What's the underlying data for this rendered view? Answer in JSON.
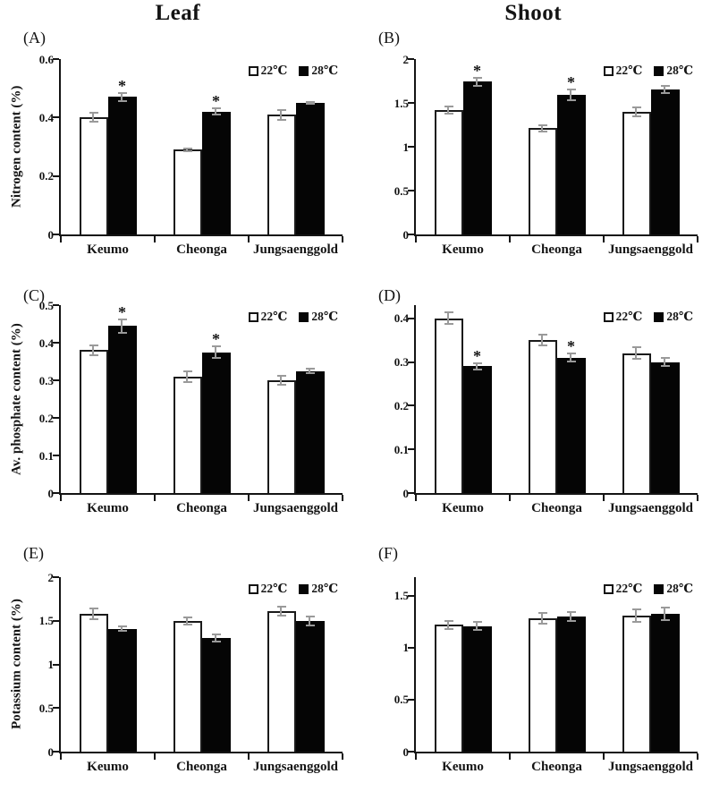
{
  "figure": {
    "column_titles": [
      "Leaf",
      "Shoot"
    ],
    "categories": [
      "Keumo",
      "Cheonga",
      "Jungsaenggold"
    ],
    "legend_labels": [
      "22℃",
      "28℃"
    ],
    "significance_marker": "*",
    "colors": {
      "bar_22c_fill": "#ffffff",
      "bar_28c_fill": "#000000",
      "error_bar": "#9a9a9a",
      "axis": "#141414",
      "background": "#ffffff"
    }
  },
  "chart_data": [
    {
      "type": "bar",
      "panel": "(A)",
      "column": "Leaf",
      "ylabel": "Nitrogen content (%)",
      "xlabel": "",
      "categories": [
        "Keumo",
        "Cheonga",
        "Jungsaenggold"
      ],
      "ylim": [
        0,
        0.6
      ],
      "yticks": [
        0,
        0.2,
        0.4,
        0.6
      ],
      "grid": false,
      "legend_position": "top-right",
      "series": [
        {
          "name": "22℃",
          "fill": "white",
          "values": [
            0.4,
            0.29,
            0.41
          ],
          "errors": [
            0.018,
            0.008,
            0.02
          ],
          "significant": [
            false,
            false,
            false
          ]
        },
        {
          "name": "28℃",
          "fill": "black",
          "values": [
            0.47,
            0.42,
            0.45
          ],
          "errors": [
            0.018,
            0.014,
            0.006
          ],
          "significant": [
            true,
            true,
            false
          ]
        }
      ]
    },
    {
      "type": "bar",
      "panel": "(B)",
      "column": "Shoot",
      "ylabel": "",
      "xlabel": "",
      "categories": [
        "Keumo",
        "Cheonga",
        "Jungsaenggold"
      ],
      "ylim": [
        0,
        2
      ],
      "yticks": [
        0,
        0.5,
        1,
        1.5,
        2
      ],
      "grid": false,
      "legend_position": "top-right",
      "series": [
        {
          "name": "22℃",
          "fill": "white",
          "values": [
            1.42,
            1.21,
            1.4
          ],
          "errors": [
            0.05,
            0.05,
            0.06
          ],
          "significant": [
            false,
            false,
            false
          ]
        },
        {
          "name": "28℃",
          "fill": "black",
          "values": [
            1.74,
            1.59,
            1.65
          ],
          "errors": [
            0.06,
            0.07,
            0.05
          ],
          "significant": [
            true,
            true,
            false
          ]
        }
      ]
    },
    {
      "type": "bar",
      "panel": "(C)",
      "column": "Leaf",
      "ylabel": "Av. phosphate content (%)",
      "xlabel": "",
      "categories": [
        "Keumo",
        "Cheonga",
        "Jungsaenggold"
      ],
      "ylim": [
        0,
        0.5
      ],
      "yticks": [
        0,
        0.1,
        0.2,
        0.3,
        0.4,
        0.5
      ],
      "grid": false,
      "legend_position": "top-right",
      "series": [
        {
          "name": "22℃",
          "fill": "white",
          "values": [
            0.38,
            0.31,
            0.3
          ],
          "errors": [
            0.016,
            0.016,
            0.015
          ],
          "significant": [
            false,
            false,
            false
          ]
        },
        {
          "name": "28℃",
          "fill": "black",
          "values": [
            0.445,
            0.375,
            0.325
          ],
          "errors": [
            0.02,
            0.017,
            0.008
          ],
          "significant": [
            true,
            true,
            false
          ]
        }
      ]
    },
    {
      "type": "bar",
      "panel": "(D)",
      "column": "Shoot",
      "ylabel": "",
      "xlabel": "",
      "categories": [
        "Keumo",
        "Cheonga",
        "Jungsaenggold"
      ],
      "ylim": [
        0,
        0.43
      ],
      "yticks": [
        0,
        0.1,
        0.2,
        0.3,
        0.4
      ],
      "grid": false,
      "legend_position": "top-right",
      "series": [
        {
          "name": "22℃",
          "fill": "white",
          "values": [
            0.4,
            0.35,
            0.32
          ],
          "errors": [
            0.016,
            0.015,
            0.015
          ],
          "significant": [
            false,
            false,
            false
          ]
        },
        {
          "name": "28℃",
          "fill": "black",
          "values": [
            0.29,
            0.31,
            0.3
          ],
          "errors": [
            0.01,
            0.012,
            0.012
          ],
          "significant": [
            true,
            true,
            false
          ]
        }
      ]
    },
    {
      "type": "bar",
      "panel": "(E)",
      "column": "Leaf",
      "ylabel": "Potassium content (%)",
      "xlabel": "",
      "categories": [
        "Keumo",
        "Cheonga",
        "Jungsaenggold"
      ],
      "ylim": [
        0,
        2
      ],
      "yticks": [
        0,
        0.5,
        1,
        1.5,
        2
      ],
      "grid": false,
      "legend_position": "top-right",
      "series": [
        {
          "name": "22℃",
          "fill": "white",
          "values": [
            1.58,
            1.5,
            1.61
          ],
          "errors": [
            0.07,
            0.05,
            0.06
          ],
          "significant": [
            false,
            false,
            false
          ]
        },
        {
          "name": "28℃",
          "fill": "black",
          "values": [
            1.41,
            1.3,
            1.5
          ],
          "errors": [
            0.04,
            0.05,
            0.06
          ],
          "significant": [
            false,
            false,
            false
          ]
        }
      ]
    },
    {
      "type": "bar",
      "panel": "(F)",
      "column": "Shoot",
      "ylabel": "",
      "xlabel": "",
      "categories": [
        "Keumo",
        "Cheonga",
        "Jungsaenggold"
      ],
      "ylim": [
        0,
        1.68
      ],
      "yticks": [
        0,
        0.5,
        1,
        1.5
      ],
      "grid": false,
      "legend_position": "top-right",
      "series": [
        {
          "name": "22℃",
          "fill": "white",
          "values": [
            1.22,
            1.28,
            1.31
          ],
          "errors": [
            0.05,
            0.06,
            0.07
          ],
          "significant": [
            false,
            false,
            false
          ]
        },
        {
          "name": "28℃",
          "fill": "black",
          "values": [
            1.21,
            1.3,
            1.33
          ],
          "errors": [
            0.05,
            0.05,
            0.07
          ],
          "significant": [
            false,
            false,
            false
          ]
        }
      ]
    }
  ]
}
